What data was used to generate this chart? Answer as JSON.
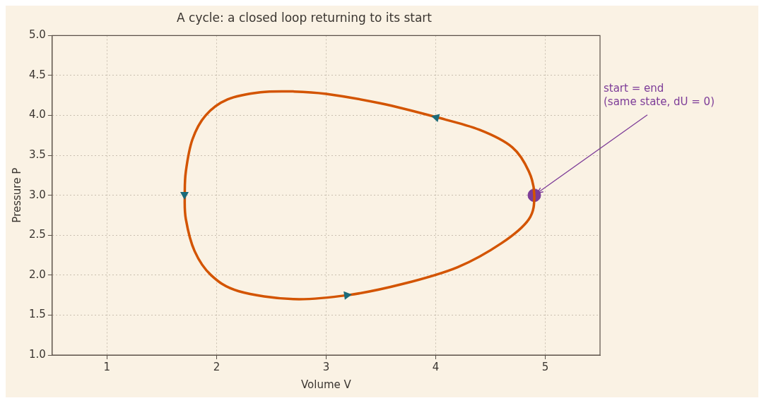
{
  "chart_data": {
    "type": "scatter",
    "title": "A cycle: a closed loop returning to its start",
    "xlabel": "Volume V",
    "ylabel": "Pressure P",
    "xlim": [
      0.5,
      5.5
    ],
    "xticks": [
      1,
      2,
      3,
      4,
      5
    ],
    "ylim": [
      1.0,
      5.0
    ],
    "yticks": [
      {
        "value": 1,
        "label": "1.0"
      },
      {
        "value": 1.5,
        "label": "1.5"
      },
      {
        "value": 2,
        "label": "2.0"
      },
      {
        "value": 2.5,
        "label": "2.5"
      },
      {
        "value": 3,
        "label": "3.0"
      },
      {
        "value": 3.5,
        "label": "3.5"
      },
      {
        "value": 4,
        "label": "4.0"
      },
      {
        "value": 4.5,
        "label": "4.5"
      },
      {
        "value": 5,
        "label": "5.0"
      }
    ],
    "grid": true,
    "legend": false,
    "series": [
      {
        "color": "#7d3c98",
        "marker": "circle",
        "x": [
          4.9
        ],
        "values": [
          3.0
        ]
      }
    ],
    "annotations": [
      {
        "text": "start = end\n(same state, dU = 0)",
        "x": 4.9,
        "y": 3.0
      }
    ]
  }
}
